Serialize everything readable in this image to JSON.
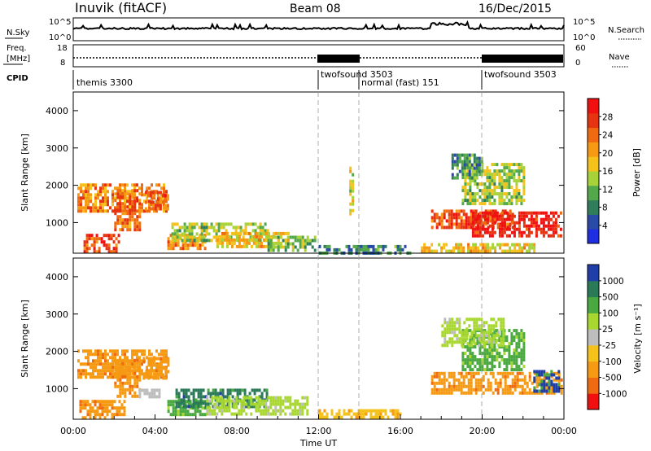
{
  "header": {
    "station": "Inuvik (fitACF)",
    "beam": "Beam 08",
    "date": "16/Dec/2015"
  },
  "noise_panel": {
    "left_label": "N.Sky",
    "right_label": "N.Search",
    "left_ticks": [
      "10^5",
      "10^0"
    ],
    "right_ticks": [
      "10^5",
      "10^0"
    ]
  },
  "freq_panel": {
    "left_label_1": "Freq.",
    "left_label_2": "[MHz]",
    "right_label": "Nave",
    "left_ticks": [
      "18",
      "8"
    ],
    "right_ticks": [
      "60",
      "0"
    ]
  },
  "cpid": {
    "label": "CPID",
    "segments": [
      {
        "name": "themis 3300",
        "start": 0,
        "end": 12
      },
      {
        "name": "twofsound 3503",
        "start": 12,
        "end": 14
      },
      {
        "name": "normal (fast) 151",
        "start": 14,
        "end": 20
      },
      {
        "name": "twofsound 3503",
        "start": 20,
        "end": 24
      }
    ]
  },
  "power_panel": {
    "ylabel": "Slant Range [km]",
    "cbar_label": "Power [dB]",
    "cbar_ticks": [
      "28",
      "24",
      "20",
      "16",
      "12",
      "8",
      "4"
    ]
  },
  "velocity_panel": {
    "ylabel": "Slant Range [km]",
    "cbar_label": "Velocity [m s⁻¹]",
    "cbar_ticks": [
      "1000",
      "500",
      "100",
      "25",
      "-25",
      "-100",
      "-500",
      "-1000"
    ]
  },
  "xaxis": {
    "label": "Time UT",
    "ticks": [
      "00:00",
      "04:00",
      "08:00",
      "12:00",
      "16:00",
      "20:00",
      "00:00"
    ]
  },
  "chart_data": [
    {
      "type": "heatmap",
      "title": "",
      "xlabel": "Time UT",
      "ylabel": "Slant Range [km]",
      "xlim": [
        0,
        24
      ],
      "ylim": [
        180,
        4500
      ],
      "yticks": [
        1000,
        2000,
        3000,
        4000
      ],
      "colorbar": {
        "label": "Power [dB]",
        "range": [
          0,
          32
        ],
        "ticks": [
          4,
          8,
          12,
          16,
          20,
          24,
          28
        ]
      },
      "colors": [
        "#1f2ee0",
        "#2a4aa8",
        "#2f7d5a",
        "#52a84a",
        "#a7d23a",
        "#f4c21a",
        "#f59a12",
        "#ef6a10",
        "#e53412",
        "#f01010"
      ],
      "regions": [
        {
          "t": [
            0.2,
            4.5
          ],
          "r": [
            1300,
            2050
          ],
          "value": 22
        },
        {
          "t": [
            0.5,
            2.2
          ],
          "r": [
            200,
            700
          ],
          "value": 26
        },
        {
          "t": [
            2.0,
            3.2
          ],
          "r": [
            800,
            1900
          ],
          "value": 24
        },
        {
          "t": [
            3.5,
            4.6
          ],
          "r": [
            1350,
            1850
          ],
          "value": 24
        },
        {
          "t": [
            4.6,
            6.5
          ],
          "r": [
            300,
            700
          ],
          "value": 22
        },
        {
          "t": [
            4.8,
            9.5
          ],
          "r": [
            550,
            1000
          ],
          "value": 14
        },
        {
          "t": [
            7.0,
            10.5
          ],
          "r": [
            350,
            750
          ],
          "value": 18
        },
        {
          "t": [
            9.5,
            11.8
          ],
          "r": [
            300,
            650
          ],
          "value": 12
        },
        {
          "t": [
            12.0,
            16.5
          ],
          "r": [
            200,
            400
          ],
          "value": 8
        },
        {
          "t": [
            13.5,
            13.7
          ],
          "r": [
            1200,
            2500
          ],
          "value": 16
        },
        {
          "t": [
            17.5,
            21.5
          ],
          "r": [
            900,
            1350
          ],
          "value": 26
        },
        {
          "t": [
            19.5,
            23.9
          ],
          "r": [
            650,
            1300
          ],
          "value": 30
        },
        {
          "t": [
            19.0,
            22.0
          ],
          "r": [
            1500,
            2600
          ],
          "value": 14
        },
        {
          "t": [
            18.5,
            20.0
          ],
          "r": [
            2200,
            2850
          ],
          "value": 10
        },
        {
          "t": [
            17.0,
            22.5
          ],
          "r": [
            200,
            450
          ],
          "value": 18
        }
      ]
    },
    {
      "type": "heatmap",
      "title": "",
      "xlabel": "Time UT",
      "ylabel": "Slant Range [km]",
      "xlim": [
        0,
        24
      ],
      "ylim": [
        180,
        4500
      ],
      "yticks": [
        1000,
        2000,
        3000,
        4000
      ],
      "colorbar": {
        "label": "Velocity [m s⁻¹]",
        "ticks": [
          1000,
          500,
          100,
          25,
          -25,
          -100,
          -500,
          -1000
        ]
      },
      "colors": [
        "#1f3ea8",
        "#2a7a58",
        "#4aa840",
        "#a8d830",
        "#bdbdbd",
        "#f4c21a",
        "#f59a12",
        "#ef6a10",
        "#f01010"
      ],
      "regions": [
        {
          "t": [
            0.2,
            4.5
          ],
          "r": [
            1300,
            2050
          ],
          "value": -500
        },
        {
          "t": [
            0.3,
            2.5
          ],
          "r": [
            200,
            700
          ],
          "value": -500
        },
        {
          "t": [
            2.0,
            3.2
          ],
          "r": [
            800,
            1800
          ],
          "value": -500
        },
        {
          "t": [
            3.4,
            4.6
          ],
          "r": [
            1300,
            1850
          ],
          "value": -500
        },
        {
          "t": [
            4.6,
            6.5
          ],
          "r": [
            300,
            700
          ],
          "value": 100
        },
        {
          "t": [
            5.0,
            9.5
          ],
          "r": [
            550,
            1000
          ],
          "value": 500
        },
        {
          "t": [
            6.5,
            11.5
          ],
          "r": [
            350,
            800
          ],
          "value": 25
        },
        {
          "t": [
            3.2,
            4.2
          ],
          "r": [
            750,
            1000
          ],
          "value": 0
        },
        {
          "t": [
            12.0,
            16.0
          ],
          "r": [
            200,
            450
          ],
          "value": -100
        },
        {
          "t": [
            17.5,
            23.9
          ],
          "r": [
            900,
            1450
          ],
          "value": -500
        },
        {
          "t": [
            19.0,
            22.0
          ],
          "r": [
            1500,
            2600
          ],
          "value": 100
        },
        {
          "t": [
            18.0,
            21.0
          ],
          "r": [
            2200,
            2900
          ],
          "value": 25
        },
        {
          "t": [
            22.5,
            23.7
          ],
          "r": [
            900,
            1500
          ],
          "value": 1000
        }
      ]
    }
  ]
}
